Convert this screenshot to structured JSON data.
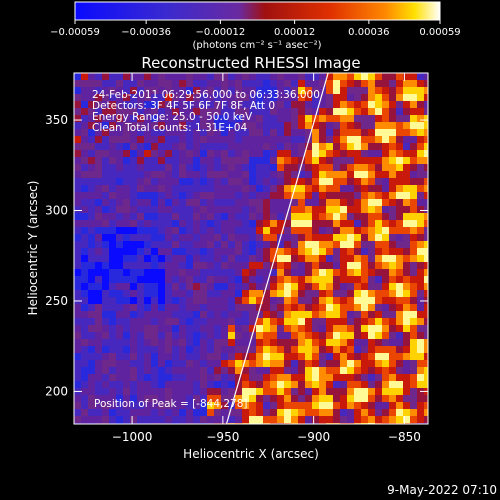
{
  "chart_data": {
    "type": "heatmap",
    "title": "Reconstructed RHESSI Image",
    "xlabel": "Heliocentric X (arcsec)",
    "ylabel": "Heliocentric Y (arcsec)",
    "xlim": [
      -1032,
      -837
    ],
    "ylim": [
      182,
      376
    ],
    "x_ticks": [
      {
        "value": -1000,
        "label": "−1000"
      },
      {
        "value": -950,
        "label": "−950"
      },
      {
        "value": -900,
        "label": "−900"
      },
      {
        "value": -850,
        "label": "−850"
      }
    ],
    "y_ticks": [
      {
        "value": 200,
        "label": "200"
      },
      {
        "value": 250,
        "label": "250"
      },
      {
        "value": 300,
        "label": "300"
      },
      {
        "value": 350,
        "label": "350"
      }
    ],
    "colorbar": {
      "range": [
        -0.00059,
        0.00059
      ],
      "ticks": [
        {
          "value": -0.00059,
          "label": "−0.00059"
        },
        {
          "value": -0.00036,
          "label": "−0.00036"
        },
        {
          "value": -0.00012,
          "label": "−0.00012"
        },
        {
          "value": 0.00012,
          "label": "0.00012"
        },
        {
          "value": 0.00036,
          "label": "0.00036"
        },
        {
          "value": 0.00059,
          "label": "0.00059"
        }
      ],
      "unit_label": "(photons cm⁻² s⁻¹ asec⁻²)",
      "colors": [
        "#0a0aff",
        "#3a2ad0",
        "#6a2aa0",
        "#a01010",
        "#e03000",
        "#ff8800",
        "#ffe000",
        "#ffffff"
      ]
    },
    "annotations": [
      "24-Feb-2011 06:29:56.000 to 06:33:36.000",
      "Detectors: 3F 4F 5F 6F 7F 8F, Att 0",
      "Energy Range: 25.0 - 50.0 keV",
      "Clean     Total counts: 1.31E+04"
    ],
    "peak_label": "Position of Peak = [-844,278]",
    "limb_line": [
      [
        -948,
        182
      ],
      [
        -892,
        376
      ]
    ]
  },
  "footer": {
    "date": "9-May-2022 07:10"
  }
}
